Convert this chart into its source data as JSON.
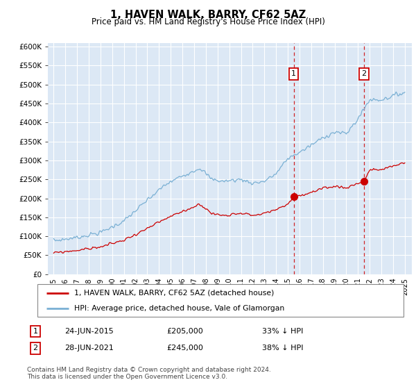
{
  "title": "1, HAVEN WALK, BARRY, CF62 5AZ",
  "subtitle": "Price paid vs. HM Land Registry's House Price Index (HPI)",
  "legend_line1": "1, HAVEN WALK, BARRY, CF62 5AZ (detached house)",
  "legend_line2": "HPI: Average price, detached house, Vale of Glamorgan",
  "footer": "Contains HM Land Registry data © Crown copyright and database right 2024.\nThis data is licensed under the Open Government Licence v3.0.",
  "purchase1": {
    "label": "1",
    "date": "24-JUN-2015",
    "price": 205000,
    "pct": "33%",
    "dir": "↓",
    "year": 2015.5
  },
  "purchase2": {
    "label": "2",
    "date": "28-JUN-2021",
    "price": 245000,
    "pct": "38%",
    "dir": "↓",
    "year": 2021.5
  },
  "ylim": [
    0,
    610000
  ],
  "yticks": [
    0,
    50000,
    100000,
    150000,
    200000,
    250000,
    300000,
    350000,
    400000,
    450000,
    500000,
    550000,
    600000
  ],
  "xlim_start": 1994.5,
  "xlim_end": 2025.6,
  "background_color": "#ffffff",
  "plot_bg_color": "#dce8f5",
  "grid_color": "#ffffff",
  "red_color": "#cc0000",
  "blue_color": "#7ab0d4"
}
